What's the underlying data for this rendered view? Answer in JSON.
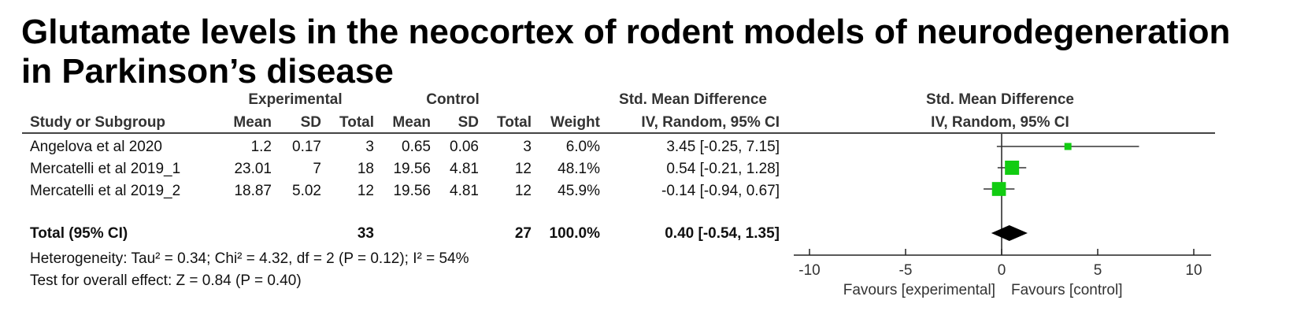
{
  "chart_data": {
    "type": "forest",
    "title_lines": [
      "Glutamate levels in the neocortex of rodent models of neurodegeneration",
      "in Parkinson’s disease"
    ],
    "group_headers": {
      "experimental": "Experimental",
      "control": "Control",
      "smd": "Std. Mean Difference",
      "plot": "Std. Mean Difference"
    },
    "columns": {
      "study": "Study or Subgroup",
      "exp_mean": "Mean",
      "exp_sd": "SD",
      "exp_total": "Total",
      "ctl_mean": "Mean",
      "ctl_sd": "SD",
      "ctl_total": "Total",
      "weight": "Weight",
      "method": "IV, Random, 95% CI",
      "plot_method": "IV, Random, 95% CI"
    },
    "studies": [
      {
        "name": "Angelova et al 2020",
        "exp_mean": "1.2",
        "exp_sd": "0.17",
        "exp_total": "3",
        "ctl_mean": "0.65",
        "ctl_sd": "0.06",
        "ctl_total": "3",
        "weight_text": "6.0%",
        "ci_text": "3.45 [-0.25, 7.15]",
        "weight": 6.0,
        "smd": 3.45,
        "lo": -0.25,
        "hi": 7.15
      },
      {
        "name": "Mercatelli et al 2019_1",
        "exp_mean": "23.01",
        "exp_sd": "7",
        "exp_total": "18",
        "ctl_mean": "19.56",
        "ctl_sd": "4.81",
        "ctl_total": "12",
        "weight_text": "48.1%",
        "ci_text": "0.54 [-0.21, 1.28]",
        "weight": 48.1,
        "smd": 0.54,
        "lo": -0.21,
        "hi": 1.28
      },
      {
        "name": "Mercatelli et al 2019_2",
        "exp_mean": "18.87",
        "exp_sd": "5.02",
        "exp_total": "12",
        "ctl_mean": "19.56",
        "ctl_sd": "4.81",
        "ctl_total": "12",
        "weight_text": "45.9%",
        "ci_text": "-0.14 [-0.94, 0.67]",
        "weight": 45.9,
        "smd": -0.14,
        "lo": -0.94,
        "hi": 0.67
      }
    ],
    "total": {
      "label": "Total (95% CI)",
      "exp_total": "33",
      "ctl_total": "27",
      "weight_text": "100.0%",
      "ci_text": "0.40 [-0.54, 1.35]",
      "smd": 0.4,
      "lo": -0.54,
      "hi": 1.35
    },
    "heterogeneity": "Heterogeneity: Tau² = 0.34; Chi² = 4.32, df = 2 (P = 0.12); I² = 54%",
    "overall_effect": "Test for overall effect: Z = 0.84 (P = 0.40)",
    "axis": {
      "xlim": [
        -10,
        10
      ],
      "ticks": [
        -10,
        -5,
        0,
        5,
        10
      ],
      "tick_labels": [
        "-10",
        "-5",
        "0",
        "5",
        "10"
      ]
    },
    "favours_left": "Favours [experimental]",
    "favours_right": "Favours [control]",
    "colors": {
      "marker": "#11cc11",
      "diamond": "#000000",
      "line": "#222222"
    }
  }
}
